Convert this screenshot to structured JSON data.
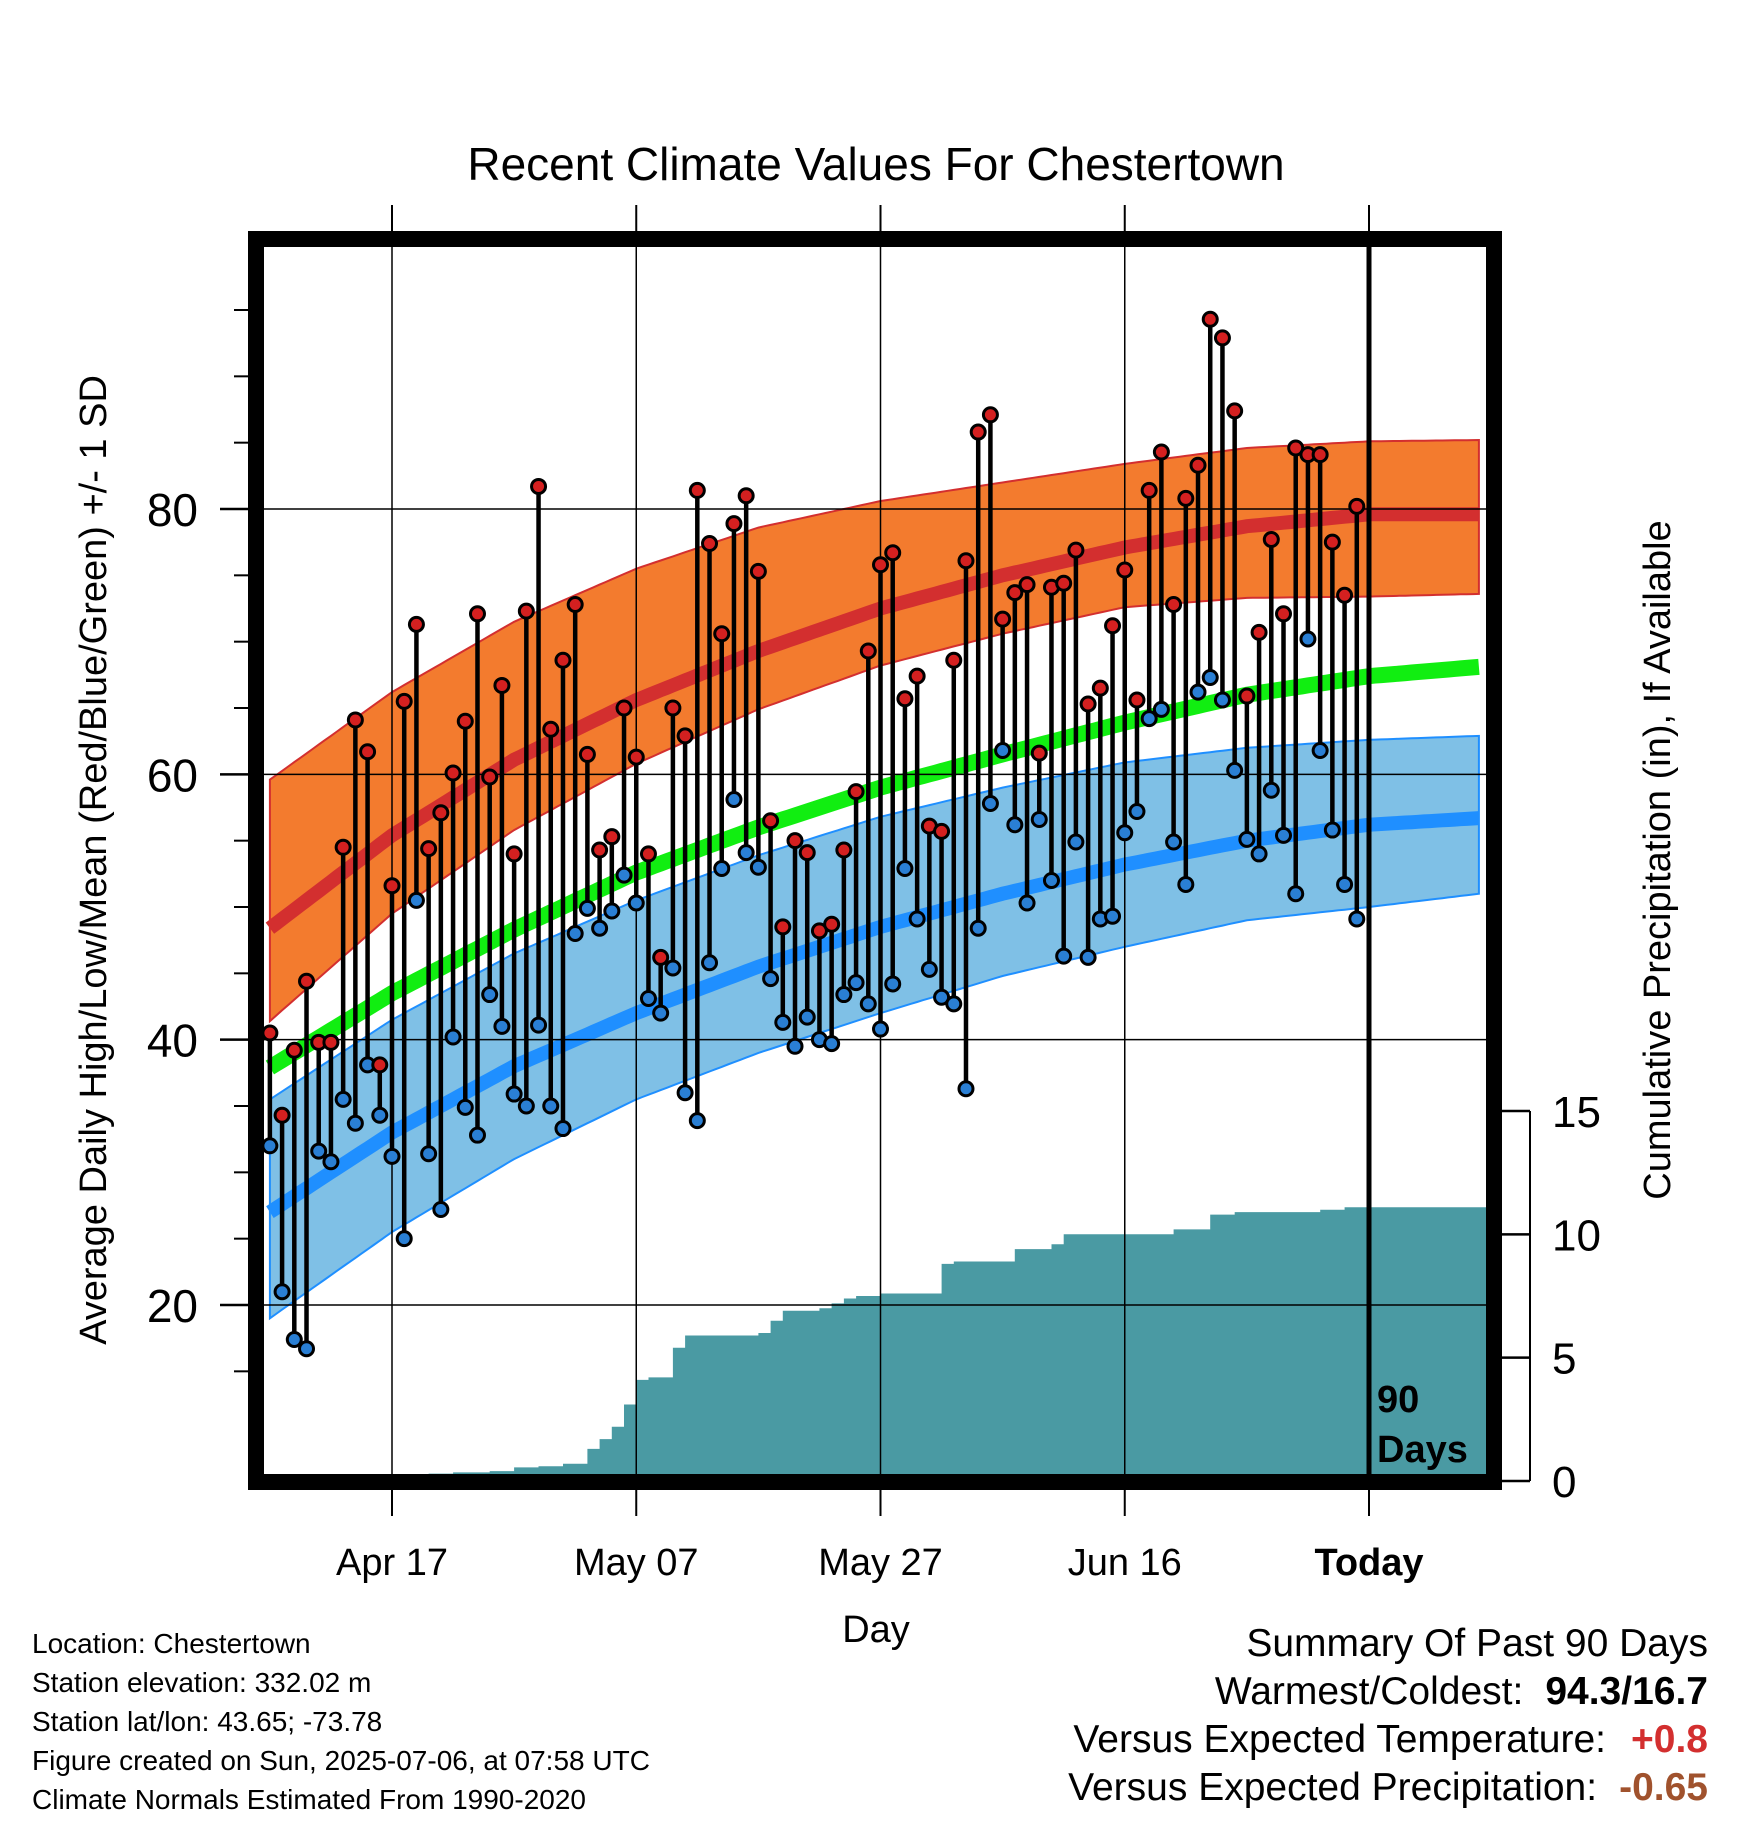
{
  "chart_data": {
    "type": "line",
    "title": "Recent Climate Values For Chestertown",
    "xlabel": "Day",
    "ylabel": "Average Daily High/Low/Mean (Red/Blue/Green) +/- 1 SD",
    "y2label": "Cumulative Precipitation (in), If Available",
    "x_tick_labels": [
      "Apr 17",
      "May 07",
      "May 27",
      "Jun 16",
      "Today"
    ],
    "x_tick_days": [
      10,
      30,
      50,
      70,
      90
    ],
    "xlim": [
      -10,
      100
    ],
    "ylim": [
      10,
      100
    ],
    "y_ticks": [
      20,
      40,
      60,
      80
    ],
    "y2lim": [
      0,
      45
    ],
    "y2_ticks": [
      0,
      5,
      10,
      15
    ],
    "grid": true,
    "today_marker_label": [
      "90",
      "Days"
    ],
    "normals": {
      "day": [
        0,
        10,
        20,
        30,
        40,
        50,
        60,
        70,
        80,
        90,
        99
      ],
      "high_mean": [
        48.4,
        55.4,
        61.1,
        65.6,
        69.3,
        72.5,
        75.0,
        77.1,
        78.7,
        79.6,
        79.6
      ],
      "high_upper": [
        59.6,
        66.2,
        71.5,
        75.5,
        78.6,
        80.6,
        82.0,
        83.4,
        84.6,
        85.1,
        85.2
      ],
      "high_lower": [
        41.4,
        49.5,
        55.8,
        60.8,
        64.9,
        68.2,
        70.6,
        72.6,
        73.3,
        73.4,
        73.6
      ],
      "mean_line": [
        37.9,
        43.5,
        48.3,
        52.6,
        56.0,
        59.0,
        61.5,
        63.9,
        66.0,
        67.4,
        68.1
      ],
      "low_mean": [
        27.0,
        33.0,
        38.0,
        42.0,
        45.5,
        48.5,
        51.0,
        53.2,
        55.0,
        56.2,
        56.7
      ],
      "low_upper": [
        35.5,
        41.5,
        46.5,
        50.5,
        53.9,
        56.8,
        59.0,
        60.9,
        62.0,
        62.6,
        62.9
      ],
      "low_lower": [
        19.0,
        25.5,
        31.0,
        35.5,
        39.0,
        42.0,
        44.8,
        47.0,
        49.0,
        50.0,
        51.0
      ]
    },
    "observed": {
      "high": [
        40.5,
        34.3,
        39.2,
        44.4,
        39.8,
        39.8,
        54.5,
        64.1,
        61.7,
        38.1,
        51.6,
        65.5,
        71.3,
        54.4,
        57.1,
        60.1,
        64.0,
        72.1,
        59.8,
        66.7,
        54.0,
        72.3,
        81.7,
        63.4,
        68.6,
        72.8,
        61.5,
        54.3,
        55.3,
        65.0,
        61.3,
        54.0,
        46.2,
        65.0,
        62.9,
        81.4,
        77.4,
        70.6,
        78.9,
        81.0,
        75.3,
        56.5,
        48.5,
        55.0,
        54.1,
        48.2,
        48.7,
        54.3,
        58.7,
        69.3,
        75.8,
        76.7,
        65.7,
        67.4,
        56.1,
        55.7,
        68.6,
        76.1,
        85.8,
        87.1,
        71.7,
        73.7,
        74.3,
        61.6,
        74.1,
        74.4,
        76.9,
        65.3,
        66.5,
        71.2,
        75.4,
        65.6,
        81.4,
        84.3,
        72.8,
        80.8,
        83.3,
        94.3,
        92.9,
        87.4,
        65.9,
        70.7,
        77.7,
        72.1,
        84.6,
        84.1,
        84.1,
        77.5,
        73.5,
        80.2
      ],
      "low": [
        32.0,
        21.0,
        17.4,
        16.7,
        31.6,
        30.8,
        35.5,
        33.7,
        38.1,
        34.3,
        31.2,
        25.0,
        50.5,
        31.4,
        27.2,
        40.2,
        34.9,
        32.8,
        43.4,
        41.0,
        35.9,
        35.0,
        41.1,
        35.0,
        33.3,
        48.0,
        49.9,
        48.4,
        49.7,
        52.4,
        50.3,
        43.1,
        42.0,
        45.4,
        36.0,
        33.9,
        45.8,
        52.9,
        58.1,
        54.1,
        53.0,
        44.6,
        41.3,
        39.5,
        41.7,
        40.0,
        39.7,
        43.4,
        44.3,
        42.7,
        40.8,
        44.2,
        52.9,
        49.1,
        45.3,
        43.2,
        42.7,
        36.3,
        48.4,
        57.8,
        61.8,
        56.2,
        50.3,
        56.6,
        52.0,
        46.3,
        54.9,
        46.2,
        49.1,
        49.3,
        55.6,
        57.2,
        64.2,
        64.9,
        54.9,
        51.7,
        66.2,
        67.3,
        65.6,
        60.3,
        55.1,
        54.0,
        58.8,
        55.4,
        51.0,
        70.2,
        61.8,
        55.8,
        51.7,
        49.1
      ]
    },
    "precipitation": {
      "day": [
        10,
        11,
        12,
        13,
        14,
        15,
        16,
        17,
        18,
        19,
        20,
        21,
        22,
        23,
        24,
        25,
        26,
        27,
        28,
        29,
        30,
        31,
        32,
        33,
        34,
        35,
        36,
        37,
        38,
        39,
        40,
        41,
        42,
        43,
        44,
        45,
        46,
        47,
        48,
        49,
        50,
        51,
        52,
        53,
        54,
        55,
        56,
        57,
        58,
        59,
        60,
        61,
        62,
        63,
        64,
        65,
        66,
        67,
        68,
        69,
        70,
        71,
        72,
        73,
        74,
        75,
        76,
        77,
        78,
        79,
        80,
        81,
        82,
        83,
        84,
        85,
        86,
        87,
        88,
        89,
        90,
        91,
        92,
        93,
        94,
        95,
        96,
        97,
        98,
        99
      ],
      "cumulative": [
        0,
        0.1,
        0.25,
        0.3,
        0.3,
        0.35,
        0.35,
        0.35,
        0.4,
        0.4,
        0.55,
        0.55,
        0.6,
        0.6,
        0.7,
        0.7,
        1.3,
        1.7,
        2.2,
        3.1,
        4.1,
        4.2,
        4.2,
        5.4,
        5.9,
        5.9,
        5.9,
        5.9,
        5.9,
        5.9,
        6.0,
        6.5,
        6.9,
        6.9,
        6.9,
        7.0,
        7.2,
        7.4,
        7.5,
        7.5,
        7.6,
        7.6,
        7.6,
        7.6,
        7.6,
        8.8,
        8.9,
        8.9,
        8.9,
        8.9,
        8.9,
        9.4,
        9.4,
        9.4,
        9.6,
        10.0,
        10.0,
        10.0,
        10.0,
        10.0,
        10.0,
        10.0,
        10.0,
        10.0,
        10.2,
        10.2,
        10.2,
        10.8,
        10.8,
        10.9,
        10.9,
        10.9,
        10.9,
        10.9,
        10.9,
        10.9,
        11.0,
        11.0,
        11.1,
        11.1,
        11.1,
        11.1,
        11.1,
        11.1,
        11.1,
        11.1,
        11.1,
        11.1,
        11.1,
        11.1
      ]
    }
  },
  "footer_info": {
    "location": "Location: Chestertown",
    "elevation": "Station elevation: 332.02 m",
    "latlon": "Station lat/lon: 43.65; -73.78",
    "created": "Figure created on Sun, 2025-07-06, at 07:58 UTC",
    "normals": "Climate Normals Estimated From 1990-2020"
  },
  "summary": {
    "heading": "Summary Of Past 90 Days",
    "warm_cold_label": "Warmest/Coldest:",
    "warm_cold_value": "94.3/16.7",
    "temp_label": "Versus Expected Temperature:",
    "temp_value": "+0.8",
    "temp_color": "#d32f2f",
    "precip_label": "Versus Expected Precipitation:",
    "precip_value": "-0.65",
    "precip_color": "#a0522d"
  },
  "colors": {
    "high_band": "#f37b2e",
    "high_line": "#d32f2f",
    "mean_line": "#11ee11",
    "low_band": "#7fc0e6",
    "low_line": "#1f8fff",
    "precip": "#4a9aa3",
    "high_marker": "#d42020",
    "low_marker": "#2a7fd4"
  }
}
